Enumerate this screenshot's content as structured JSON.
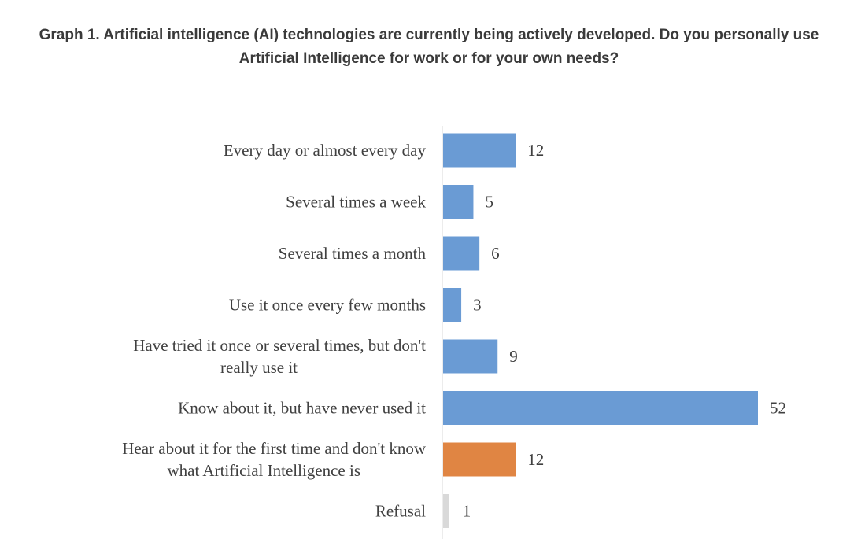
{
  "title": "Graph 1. Artificial intelligence (AI) technologies are currently being actively developed. Do you personally use Artificial Intelligence for work or for your own needs?",
  "chart_data": {
    "type": "bar",
    "orientation": "horizontal",
    "title": "Graph 1. Artificial intelligence (AI) technologies are currently being actively developed. Do you personally use Artificial Intelligence for work or for your own needs?",
    "xlabel": "",
    "ylabel": "",
    "grid": false,
    "legend": "none",
    "categories": [
      "Every day or almost every day",
      "Several times a week",
      "Several times a month",
      "Use it once every few months",
      "Have tried it once or several times, but don't really use it",
      "Know about it, but have never used it",
      "Hear about it for the first time and don't know what Artificial Intelligence is",
      "Refusal"
    ],
    "values": [
      12,
      5,
      6,
      3,
      9,
      52,
      12,
      1
    ],
    "colors": [
      "#6a9bd4",
      "#6a9bd4",
      "#6a9bd4",
      "#6a9bd4",
      "#6a9bd4",
      "#6a9bd4",
      "#e08543",
      "#d9d9d9"
    ],
    "xlim": [
      0,
      52
    ]
  }
}
